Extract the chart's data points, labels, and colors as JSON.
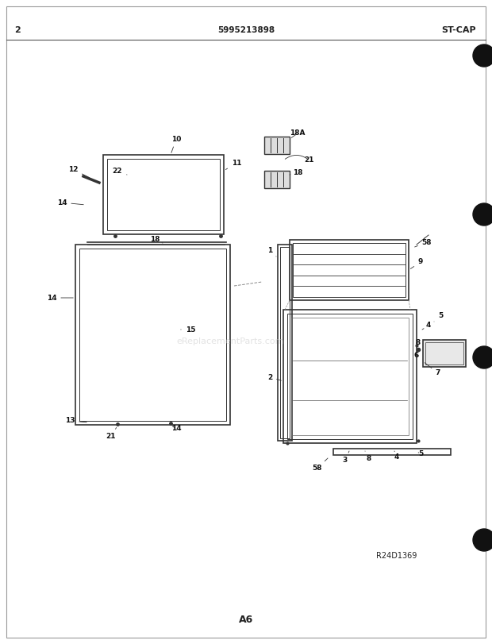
{
  "page_number": "2",
  "center_text": "5995213898",
  "top_right_text": "ST-CAP",
  "bottom_center_text": "A6",
  "bottom_right_text": "R24D1369",
  "watermark": "eReplacementParts.com",
  "bg_color": "#ffffff",
  "text_color": "#222222"
}
